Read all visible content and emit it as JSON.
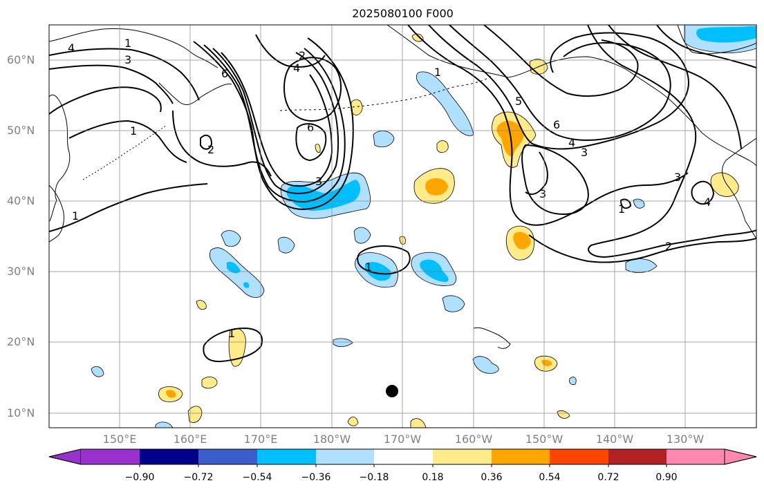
{
  "title": "2025080100 F000",
  "lat_labels": [
    "60°N",
    "50°N",
    "40°N",
    "30°N",
    "20°N",
    "10°N"
  ],
  "lon_labels": [
    "150°E",
    "160°E",
    "170°E",
    "180°W",
    "170°W",
    "160°W",
    "150°W",
    "140°W",
    "130°W"
  ],
  "colorbar": {
    "ticks": [
      "−0.90",
      "−0.72",
      "−0.54",
      "−0.36",
      "−0.18",
      "0.18",
      "0.36",
      "0.54",
      "0.72",
      "0.90"
    ],
    "colors": [
      "#9932cc",
      "#00008b",
      "#3a5fcd",
      "#00bfff",
      "#b0e0ff",
      "#ffffff",
      "#ffeb8a",
      "#ffa500",
      "#ff4500",
      "#b22222",
      "#ff88b0"
    ]
  },
  "contour_labels": [
    "1",
    "4",
    "3",
    "1",
    "6",
    "2",
    "4",
    "6",
    "3",
    "1",
    "2",
    "1",
    "1",
    "1",
    "5",
    "6",
    "4",
    "3",
    "3",
    "1",
    "3",
    "4",
    "2"
  ]
}
